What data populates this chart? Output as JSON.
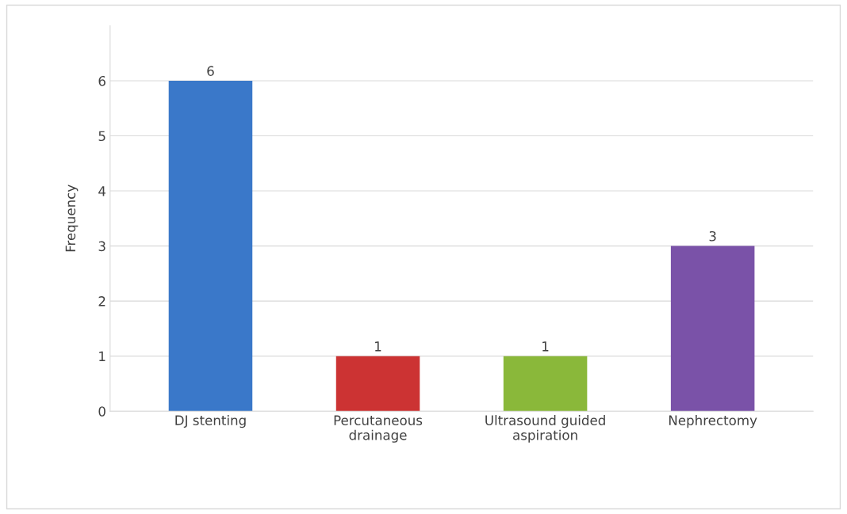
{
  "chart_data": {
    "type": "bar",
    "ylabel": "Frequency",
    "categories": [
      "DJ stenting",
      "Percutaneous\ndrainage",
      "Ultrasound guided\naspiration",
      "Nephrectomy"
    ],
    "values": [
      6,
      1,
      1,
      3
    ],
    "colors": [
      "#3a78c9",
      "#cc3333",
      "#8ab83a",
      "#7a52a8"
    ],
    "ylim": [
      0,
      7
    ],
    "yticks": [
      0,
      1,
      2,
      3,
      4,
      5,
      6
    ],
    "grid": "y",
    "data_labels": true
  }
}
